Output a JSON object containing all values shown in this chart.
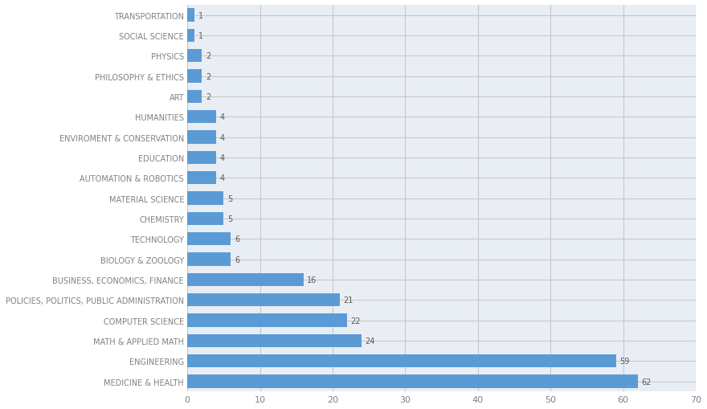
{
  "categories": [
    "MEDICINE & HEALTH",
    "ENGINEERING",
    "MATH & APPLIED MATH",
    "COMPUTER SCIENCE",
    "POLICIES, POLITICS, PUBLIC ADMINISTRATION",
    "BUSINESS, ECONOMICS, FINANCE",
    "BIOLOGY & ZOOLOGY",
    "TECHNOLOGY",
    "CHEMISTRY",
    "MATERIAL SCIENCE",
    "AUTOMATION & ROBOTICS",
    "EDUCATION",
    "ENVIROMENT & CONSERVATION",
    "HUMANITIES",
    "ART",
    "PHILOSOPHY & ETHICS",
    "PHYSICS",
    "SOCIAL SCIENCE",
    "TRANSPORTATION"
  ],
  "values": [
    62,
    59,
    24,
    22,
    21,
    16,
    6,
    6,
    5,
    5,
    4,
    4,
    4,
    4,
    2,
    2,
    2,
    1,
    1
  ],
  "bar_color": "#5B9BD5",
  "label_color": "#808080",
  "value_color": "#595959",
  "grid_color": "#C8C8C8",
  "background_color": "#FFFFFF",
  "plot_bg_color": "#E9EEF4",
  "xlim": [
    0,
    70
  ],
  "xticks": [
    0,
    10,
    20,
    30,
    40,
    50,
    60,
    70
  ],
  "bar_height": 0.65,
  "label_fontsize": 7.0,
  "value_fontsize": 7.0,
  "tick_fontsize": 8.0
}
